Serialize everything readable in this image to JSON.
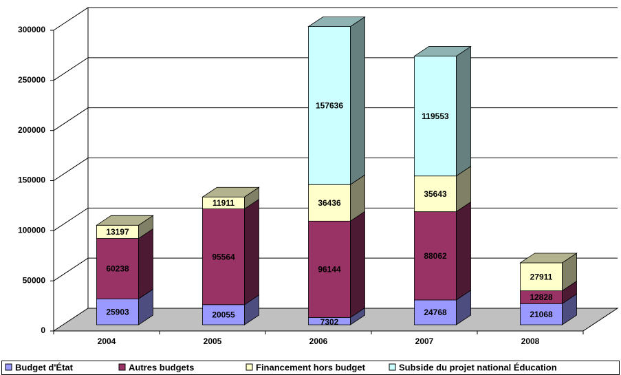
{
  "chart_data": {
    "type": "bar3d_stacked",
    "categories": [
      "2004",
      "2005",
      "2006",
      "2007",
      "2008"
    ],
    "series": [
      {
        "name": "Budget d'État",
        "color": "#9999ff",
        "values": [
          25903,
          20055,
          7302,
          24768,
          21068
        ]
      },
      {
        "name": "Autres budgets",
        "color": "#993366",
        "values": [
          60238,
          95564,
          96144,
          88062,
          12828
        ]
      },
      {
        "name": "Financement hors budget",
        "color": "#ffffcc",
        "values": [
          13197,
          11911,
          36436,
          35643,
          27911
        ]
      },
      {
        "name": "Subside du projet national Éducation",
        "color": "#ccffff",
        "values": [
          null,
          null,
          157636,
          119553,
          null
        ]
      }
    ],
    "ylim": [
      0,
      300000
    ],
    "yticks": [
      0,
      50000,
      100000,
      150000,
      200000,
      250000,
      300000
    ],
    "grid": true,
    "legend": "bottom"
  }
}
